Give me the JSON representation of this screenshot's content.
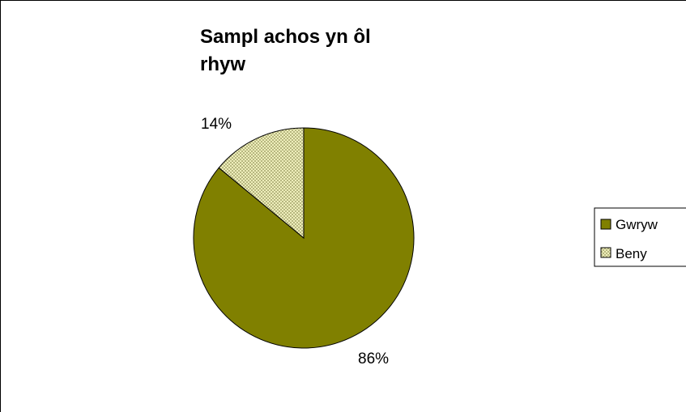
{
  "chart_data": {
    "type": "pie",
    "title_lines": [
      "Sampl achos yn ôl",
      "rhyw"
    ],
    "slices": [
      {
        "label": "Gwryw",
        "value": 86,
        "value_label": "86%",
        "color": "#808000",
        "pattern": "solid"
      },
      {
        "label": "Beny",
        "value": 14,
        "value_label": "14%",
        "color": "#eeeebb",
        "pattern": "checker"
      }
    ],
    "legend_placement": "right",
    "start": "top",
    "direction": "clockwise",
    "colors": {
      "outline": "#000000",
      "background": "#ffffff",
      "pattern_fg": "#b7b780"
    }
  }
}
